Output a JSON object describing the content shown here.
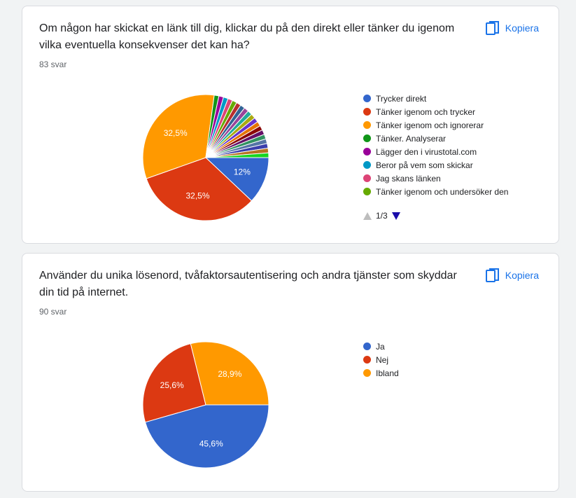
{
  "cards": [
    {
      "question": "Om någon har skickat en länk till dig, klickar du på den direkt eller tänker du igenom vilka eventuella konsekvenser det kan ha?",
      "responses": "83 svar",
      "copy_label": "Kopiera",
      "pager_text": "1/3",
      "chart_data": {
        "type": "pie",
        "legend_placement": "right",
        "slices": [
          {
            "label": "Trycker direkt",
            "percent": 12.0,
            "color": "#3366cc",
            "display": "12%"
          },
          {
            "label": "Tänker igenom och trycker",
            "percent": 32.5,
            "color": "#dc3912",
            "display": "32,5%"
          },
          {
            "label": "Tänker igenom och ignorerar",
            "percent": 32.5,
            "color": "#ff9900",
            "display": "32,5%"
          },
          {
            "label": "Tänker. Analyserar",
            "percent": 1.2,
            "color": "#109618",
            "display": ""
          },
          {
            "label": "Lägger den i virustotal.com",
            "percent": 1.2,
            "color": "#990099",
            "display": ""
          },
          {
            "label": "Beror på vem som skickar",
            "percent": 1.2,
            "color": "#0099c6",
            "display": ""
          },
          {
            "label": "Jag skans länken",
            "percent": 1.2,
            "color": "#dd4477",
            "display": ""
          },
          {
            "label": "Tänker igenom och undersöker den",
            "percent": 1.2,
            "color": "#66aa00",
            "display": ""
          },
          {
            "label": "",
            "percent": 1.2,
            "color": "#b82e2e",
            "display": ""
          },
          {
            "label": "",
            "percent": 1.2,
            "color": "#316395",
            "display": ""
          },
          {
            "label": "",
            "percent": 1.2,
            "color": "#994499",
            "display": ""
          },
          {
            "label": "",
            "percent": 1.2,
            "color": "#22aa99",
            "display": ""
          },
          {
            "label": "",
            "percent": 1.2,
            "color": "#aaaa11",
            "display": ""
          },
          {
            "label": "",
            "percent": 1.2,
            "color": "#6633cc",
            "display": ""
          },
          {
            "label": "",
            "percent": 1.2,
            "color": "#e67300",
            "display": ""
          },
          {
            "label": "",
            "percent": 1.2,
            "color": "#8b0707",
            "display": ""
          },
          {
            "label": "",
            "percent": 1.2,
            "color": "#651067",
            "display": ""
          },
          {
            "label": "",
            "percent": 1.2,
            "color": "#329262",
            "display": ""
          },
          {
            "label": "",
            "percent": 1.2,
            "color": "#5574a6",
            "display": ""
          },
          {
            "label": "",
            "percent": 1.2,
            "color": "#3b3eac",
            "display": ""
          },
          {
            "label": "",
            "percent": 1.2,
            "color": "#b77322",
            "display": ""
          },
          {
            "label": "",
            "percent": 1.2,
            "color": "#16d620",
            "display": ""
          }
        ],
        "legend_visible": 8
      }
    },
    {
      "question": "Använder du unika lösenord, tvåfaktorsautentisering och andra tjänster som skyddar din tid på internet.",
      "responses": "90 svar",
      "copy_label": "Kopiera",
      "chart_data": {
        "type": "pie",
        "legend_placement": "right",
        "slices": [
          {
            "label": "Ja",
            "percent": 45.6,
            "color": "#3366cc",
            "display": "45,6%"
          },
          {
            "label": "Nej",
            "percent": 25.6,
            "color": "#dc3912",
            "display": "25,6%"
          },
          {
            "label": "Ibland",
            "percent": 28.9,
            "color": "#ff9900",
            "display": "28,9%"
          }
        ],
        "legend_visible": 3
      }
    }
  ]
}
